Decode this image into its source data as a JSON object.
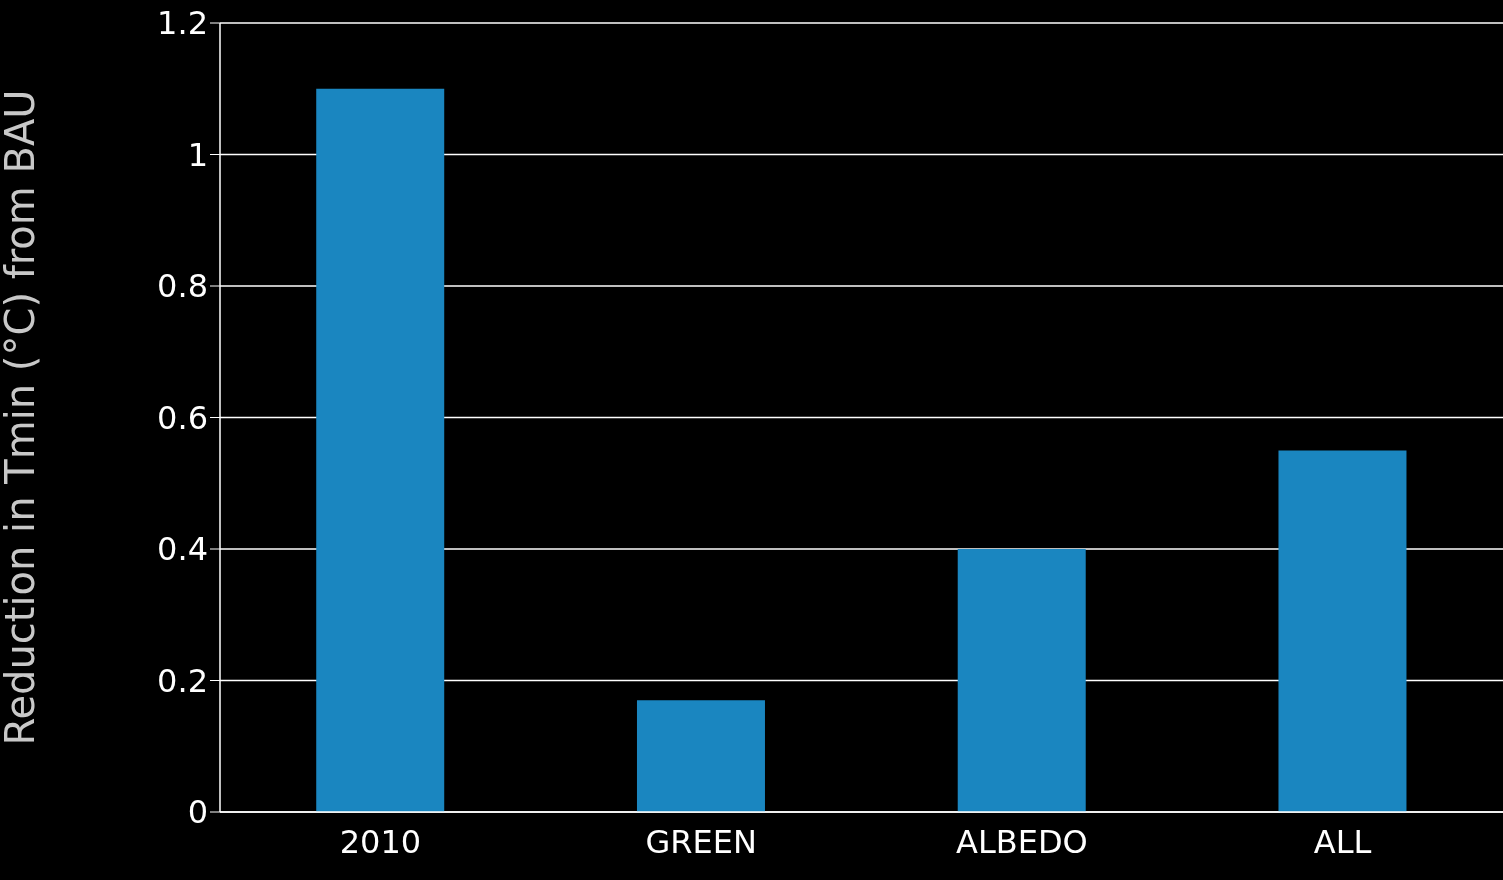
{
  "chart_data": {
    "type": "bar",
    "ylabel": "Reduction in Tmin (°C) from BAU",
    "categories": [
      "2010",
      "GREEN",
      "ALBEDO",
      "ALL"
    ],
    "values": [
      1.1,
      0.17,
      0.4,
      0.55
    ],
    "color": "#1a86c0",
    "ylim": [
      0,
      1.2
    ],
    "yticks": [
      0,
      0.2,
      0.4,
      0.6,
      0.8,
      1,
      1.2
    ],
    "grid": "y"
  }
}
